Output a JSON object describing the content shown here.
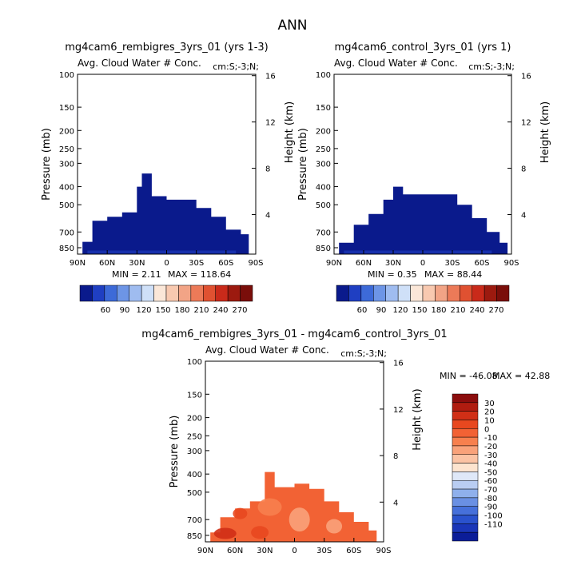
{
  "page_title": "ANN",
  "chart_data": [
    {
      "type": "heatmap",
      "panel": "top-left",
      "title": "mg4cam6_rembigres_3yrs_01 (yrs 1-3)",
      "subtitle": "Avg. Cloud Water # Conc.",
      "region": "cm:S;-3;N;",
      "ylabel": "Pressure (mb)",
      "ylabel_right": "Height (km)",
      "x_ticks": [
        "90N",
        "60N",
        "30N",
        "0",
        "30S",
        "60S",
        "90S"
      ],
      "y_ticks": [
        "100",
        "150",
        "200",
        "250",
        "300",
        "400",
        "500",
        "700",
        "850"
      ],
      "y_ticks_right": [
        "16",
        "12",
        "8",
        "4"
      ],
      "min_label": "MIN =    2.11",
      "max_label": "MAX =  118.64",
      "colorbar": {
        "labels": [
          "60",
          "90",
          "120",
          "150",
          "180",
          "210",
          "240",
          "270"
        ],
        "colors": [
          "#0a1a8c",
          "#1f3fc2",
          "#3d6ad8",
          "#6d95e6",
          "#9fbcf0",
          "#cfe0f8",
          "#fbe7d8",
          "#f8c9b0",
          "#f2a486",
          "#ec7a58",
          "#e05131",
          "#c92a1a",
          "#9c1a0f",
          "#7a0e0a"
        ]
      },
      "cloud_top_profile_mb": [
        {
          "lat": 85,
          "top_mb": 790
        },
        {
          "lat": 75,
          "top_mb": 610
        },
        {
          "lat": 60,
          "top_mb": 580
        },
        {
          "lat": 45,
          "top_mb": 550
        },
        {
          "lat": 30,
          "top_mb": 400
        },
        {
          "lat": 25,
          "top_mb": 340
        },
        {
          "lat": 15,
          "top_mb": 450
        },
        {
          "lat": 0,
          "top_mb": 470
        },
        {
          "lat": -15,
          "top_mb": 470
        },
        {
          "lat": -30,
          "top_mb": 520
        },
        {
          "lat": -45,
          "top_mb": 580
        },
        {
          "lat": -60,
          "top_mb": 680
        },
        {
          "lat": -75,
          "top_mb": 720
        }
      ]
    },
    {
      "type": "heatmap",
      "panel": "top-right",
      "title": "mg4cam6_control_3yrs_01 (yrs 1)",
      "subtitle": "Avg. Cloud Water # Conc.",
      "region": "cm:S;-3;N;",
      "ylabel": "Pressure (mb)",
      "ylabel_right": "Height (km)",
      "x_ticks": [
        "90N",
        "60N",
        "30N",
        "0",
        "30S",
        "60S",
        "90S"
      ],
      "y_ticks": [
        "100",
        "150",
        "200",
        "250",
        "300",
        "400",
        "500",
        "700",
        "850"
      ],
      "y_ticks_right": [
        "16",
        "12",
        "8",
        "4"
      ],
      "min_label": "MIN =    0.35",
      "max_label": "MAX =   88.44",
      "colorbar": {
        "labels": [
          "60",
          "90",
          "120",
          "150",
          "180",
          "210",
          "240",
          "270"
        ],
        "colors": [
          "#0a1a8c",
          "#1f3fc2",
          "#3d6ad8",
          "#6d95e6",
          "#9fbcf0",
          "#cfe0f8",
          "#fbe7d8",
          "#f8c9b0",
          "#f2a486",
          "#ec7a58",
          "#e05131",
          "#c92a1a",
          "#9c1a0f",
          "#7a0e0a"
        ]
      },
      "cloud_top_profile_mb": [
        {
          "lat": 85,
          "top_mb": 800
        },
        {
          "lat": 70,
          "top_mb": 640
        },
        {
          "lat": 55,
          "top_mb": 560
        },
        {
          "lat": 40,
          "top_mb": 470
        },
        {
          "lat": 30,
          "top_mb": 400
        },
        {
          "lat": 20,
          "top_mb": 440
        },
        {
          "lat": 0,
          "top_mb": 440
        },
        {
          "lat": -20,
          "top_mb": 440
        },
        {
          "lat": -35,
          "top_mb": 500
        },
        {
          "lat": -50,
          "top_mb": 590
        },
        {
          "lat": -65,
          "top_mb": 700
        },
        {
          "lat": -78,
          "top_mb": 800
        }
      ]
    },
    {
      "type": "heatmap",
      "panel": "bottom",
      "title": "mg4cam6_rembigres_3yrs_01 - mg4cam6_control_3yrs_01",
      "subtitle": "Avg. Cloud Water # Conc.",
      "region": "cm:S;-3;N;",
      "ylabel": "Pressure (mb)",
      "ylabel_right": "Height (km)",
      "x_ticks": [
        "90N",
        "60N",
        "30N",
        "0",
        "30S",
        "60S",
        "90S"
      ],
      "y_ticks": [
        "100",
        "150",
        "200",
        "250",
        "300",
        "400",
        "500",
        "700",
        "850"
      ],
      "y_ticks_right": [
        "16",
        "12",
        "8",
        "4"
      ],
      "min_label": "MIN =  -46.08",
      "max_label": "MAX =   42.88",
      "colorbar": {
        "labels": [
          "30",
          "20",
          "10",
          "0",
          "-10",
          "-20",
          "-30",
          "-40",
          "-50",
          "-60",
          "-70",
          "-80",
          "-90",
          "-100",
          "-110"
        ],
        "colors": [
          "#8b0d0d",
          "#b01c10",
          "#d02f16",
          "#e8481f",
          "#f26234",
          "#f7804e",
          "#f9a27a",
          "#fbc3a4",
          "#fde4cf",
          "#dfe8f8",
          "#b9cdf2",
          "#8fb0ec",
          "#6a90e3",
          "#4670da",
          "#2a52cd",
          "#1a36b8",
          "#0b1d98"
        ]
      },
      "cloud_top_profile_mb": [
        {
          "lat": 85,
          "top_mb": 820
        },
        {
          "lat": 75,
          "top_mb": 680
        },
        {
          "lat": 60,
          "top_mb": 610
        },
        {
          "lat": 45,
          "top_mb": 560
        },
        {
          "lat": 30,
          "top_mb": 390
        },
        {
          "lat": 20,
          "top_mb": 470
        },
        {
          "lat": 0,
          "top_mb": 450
        },
        {
          "lat": -15,
          "top_mb": 480
        },
        {
          "lat": -30,
          "top_mb": 560
        },
        {
          "lat": -45,
          "top_mb": 640
        },
        {
          "lat": -60,
          "top_mb": 720
        },
        {
          "lat": -75,
          "top_mb": 800
        }
      ]
    }
  ]
}
